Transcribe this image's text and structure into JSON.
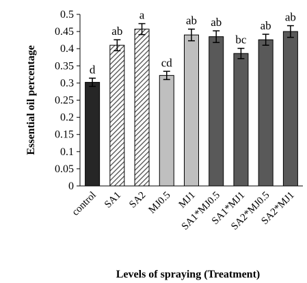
{
  "chart_data": {
    "type": "bar",
    "title": "",
    "xlabel": "Levels of spraying (Treatment)",
    "ylabel": "Essential oil percentage",
    "ylim": [
      0,
      0.5
    ],
    "yticks": [
      "0",
      "0.05",
      "0.1",
      "0.15",
      "0.2",
      "0.25",
      "0.3",
      "0.35",
      "0.4",
      "0.45",
      "0.5"
    ],
    "grid": false,
    "legend": "none",
    "categories": [
      "control",
      "SA1",
      "SA2",
      "MJ0.5",
      "MJ1",
      "SA1*MJ0.5",
      "SA1*MJ1",
      "SA2*MJ0.5",
      "SA2*MJ1"
    ],
    "values": [
      0.302,
      0.41,
      0.457,
      0.322,
      0.44,
      0.435,
      0.386,
      0.426,
      0.45
    ],
    "errors": [
      0.012,
      0.016,
      0.016,
      0.012,
      0.017,
      0.017,
      0.015,
      0.016,
      0.017
    ],
    "data_labels": [
      "d",
      "ab",
      "a",
      "cd",
      "ab",
      "ab",
      "bc",
      "ab",
      "ab"
    ],
    "fills": [
      "solid-black",
      "hatched",
      "hatched",
      "light-gray",
      "light-gray",
      "dark-gray",
      "dark-gray",
      "dark-gray",
      "dark-gray"
    ],
    "colors": {
      "solid-black": "#262626",
      "light-gray": "#bfbfbf",
      "dark-gray": "#595959",
      "hatch-bg": "#ffffff",
      "hatch-line": "#4d4d4d"
    }
  }
}
